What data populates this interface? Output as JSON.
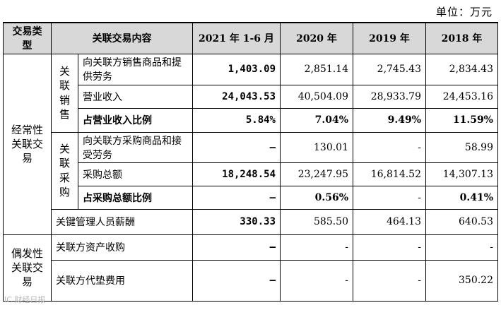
{
  "unit_label": "单位：万元",
  "headers": {
    "type": "交易类型",
    "content": "关联交易内容",
    "c2021": "2021 年 1-6 月",
    "c2020": "2020 年",
    "c2019": "2019 年",
    "c2018": "2018 年"
  },
  "categories": {
    "recurring": "经常性关联交易",
    "occasional": "偶发性关联交易"
  },
  "groups": {
    "sales": "关联销售",
    "purchase": "关联采购"
  },
  "rows": {
    "sales_goods": {
      "label": "向关联方销售商品和提供劳务",
      "v2021": "1,403.09",
      "v2020": "2,851.14",
      "v2019": "2,745.43",
      "v2018": "2,834.43"
    },
    "revenue": {
      "label": "营业收入",
      "v2021": "24,043.53",
      "v2020": "40,504.09",
      "v2019": "28,933.79",
      "v2018": "24,453.16"
    },
    "revenue_ratio": {
      "label": "占营业收入比例",
      "v2021": "5.84%",
      "v2020": "7.04%",
      "v2019": "9.49%",
      "v2018": "11.59%"
    },
    "purchase_goods": {
      "label": "向关联方采购商品和接受劳务",
      "v2021": "–",
      "v2020": "130.01",
      "v2019": "-",
      "v2018": "58.99"
    },
    "purchase_total": {
      "label": "采购总额",
      "v2021": "18,248.54",
      "v2020": "23,247.95",
      "v2019": "16,814.52",
      "v2018": "14,307.13"
    },
    "purchase_ratio": {
      "label": "占采购总额比例",
      "v2021": "–",
      "v2020": "0.56%",
      "v2019": "-",
      "v2018": "0.41%"
    },
    "mgmt_pay": {
      "label": "关键管理人员薪酬",
      "v2021": "330.33",
      "v2020": "585.50",
      "v2019": "464.13",
      "v2018": "640.53"
    },
    "asset_purchase": {
      "label": "关联方资产收购",
      "v2021": "–",
      "v2020": "-",
      "v2019": "-",
      "v2018": "-"
    },
    "advance_fee": {
      "label": "关联方代垫费用",
      "v2021": "–",
      "v2020": "-",
      "v2019": "-",
      "v2018": "350.22"
    }
  },
  "watermark": "IC 财经日报"
}
